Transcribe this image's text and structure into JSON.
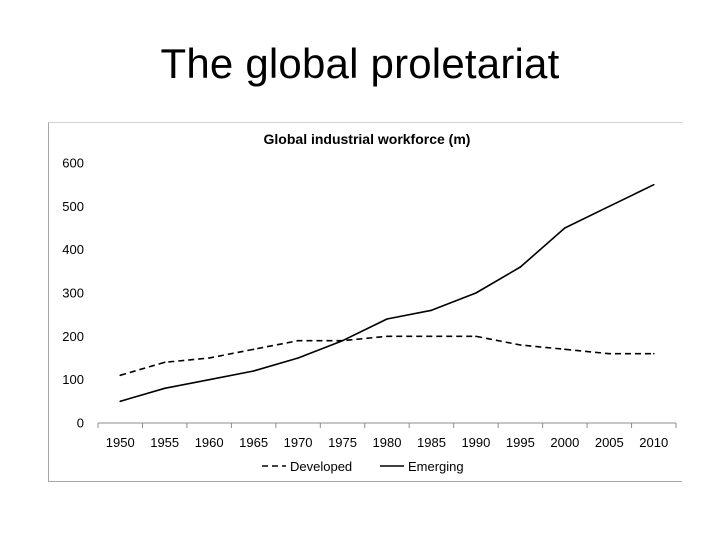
{
  "page": {
    "title": "The global proletariat"
  },
  "chart_data": {
    "type": "line",
    "title": "Global industrial workforce (m)",
    "xlabel": "",
    "ylabel": "",
    "x": [
      1950,
      1955,
      1960,
      1965,
      1970,
      1975,
      1980,
      1985,
      1990,
      1995,
      2000,
      2005,
      2010
    ],
    "ylim": [
      0,
      600
    ],
    "yticks": [
      0,
      100,
      200,
      300,
      400,
      500,
      600
    ],
    "grid": false,
    "legend_position": "bottom",
    "series": [
      {
        "name": "Developed",
        "style": "dashed",
        "color": "#000000",
        "values": [
          110,
          140,
          150,
          170,
          190,
          190,
          200,
          200,
          200,
          180,
          170,
          160,
          160
        ]
      },
      {
        "name": "Emerging",
        "style": "solid",
        "color": "#000000",
        "values": [
          50,
          80,
          100,
          120,
          150,
          190,
          240,
          260,
          300,
          360,
          450,
          500,
          550
        ]
      }
    ]
  }
}
